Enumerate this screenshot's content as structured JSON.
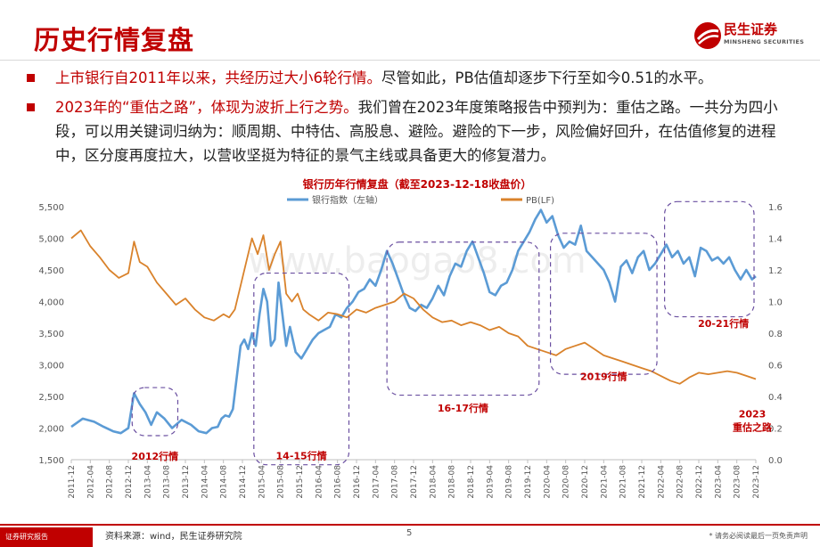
{
  "header": {
    "title": "历史行情复盘",
    "logo_cn": "民生证券",
    "logo_en": "MINSHENG SECURITIES"
  },
  "bullets": [
    {
      "red": "上市银行自2011年以来，共经历过大小6轮行情。",
      "normal": "尽管如此，PB估值却逐步下行至如今0.51的水平。"
    },
    {
      "red": "2023年的“重估之路”，体现为波折上行之势。",
      "normal": "我们曾在2023年度策略报告中预判为：重估之路。一共分为四小段，可以用关键词归纳为：顺周期、中特估、高股息、避险。避险的下一步，风险偏好回升，在估值修复的进程中，区分度再度拉大，以营收坚挺为特征的景气主线或具备更大的修复潜力。"
    }
  ],
  "chart_data": {
    "type": "line",
    "title": "银行历年行情复盘（截至2023-12-18收盘价）",
    "watermark": "www.baogao8.com",
    "colors": {
      "index": "#5b9bd5",
      "pb": "#d9822b",
      "box": "#6a4fa0",
      "annotation": "#c00000"
    },
    "legend": [
      "银行指数（左轴）",
      "PB(LF)"
    ],
    "y_left": {
      "min": 1500,
      "max": 5500,
      "ticks": [
        "1,500",
        "2,000",
        "2,500",
        "3,000",
        "3,500",
        "4,000",
        "4,500",
        "5,000",
        "5,500"
      ],
      "tick_values": [
        1500,
        2000,
        2500,
        3000,
        3500,
        4000,
        4500,
        5000,
        5500
      ]
    },
    "y_right": {
      "min": 0,
      "max": 1.6,
      "ticks": [
        "0.0",
        "0.2",
        "0.4",
        "0.6",
        "0.8",
        "1.0",
        "1.2",
        "1.4",
        "1.6"
      ],
      "tick_values": [
        0,
        0.2,
        0.4,
        0.6,
        0.8,
        1.0,
        1.2,
        1.4,
        1.6
      ]
    },
    "x_labels": [
      "2011-12",
      "2012-04",
      "2012-08",
      "2012-12",
      "2013-04",
      "2013-08",
      "2013-12",
      "2014-04",
      "2014-08",
      "2014-12",
      "2015-04",
      "2015-08",
      "2015-12",
      "2016-04",
      "2016-08",
      "2016-12",
      "2017-04",
      "2017-08",
      "2017-12",
      "2018-04",
      "2018-08",
      "2018-12",
      "2019-04",
      "2019-08",
      "2019-12",
      "2020-04",
      "2020-08",
      "2020-12",
      "2021-04",
      "2021-08",
      "2021-12",
      "2022-04",
      "2022-08",
      "2022-12",
      "2023-04",
      "2023-08",
      "2023-12"
    ],
    "series": [
      {
        "name": "银行指数（左轴）",
        "axis": "left",
        "x": [
          0,
          0.6,
          1.2,
          1.7,
          2.2,
          2.6,
          3.0,
          3.3,
          3.6,
          3.9,
          4.2,
          4.5,
          4.9,
          5.3,
          5.8,
          6.3,
          6.7,
          7.1,
          7.4,
          7.7,
          7.9,
          8.1,
          8.3,
          8.5,
          8.7,
          8.9,
          9.1,
          9.3,
          9.5,
          9.7,
          9.9,
          10.1,
          10.3,
          10.5,
          10.7,
          10.9,
          11.1,
          11.3,
          11.5,
          11.8,
          12.1,
          12.4,
          12.7,
          13.0,
          13.3,
          13.6,
          13.9,
          14.2,
          14.5,
          14.8,
          15.1,
          15.4,
          15.7,
          16.0,
          16.3,
          16.6,
          16.9,
          17.2,
          17.5,
          17.8,
          18.1,
          18.4,
          18.7,
          19.0,
          19.3,
          19.6,
          19.9,
          20.2,
          20.5,
          20.8,
          21.1,
          21.4,
          21.7,
          22.0,
          22.3,
          22.6,
          22.9,
          23.2,
          23.5,
          23.8,
          24.1,
          24.4,
          24.7,
          25.0,
          25.3,
          25.6,
          25.9,
          26.2,
          26.5,
          26.8,
          27.1,
          27.4,
          27.7,
          28.0,
          28.3,
          28.6,
          28.9,
          29.2,
          29.5,
          29.8,
          30.1,
          30.4,
          30.7,
          31.0,
          31.3,
          31.6,
          31.9,
          32.2,
          32.5,
          32.8,
          33.1,
          33.4,
          33.7,
          34.0,
          34.3,
          34.6,
          34.9,
          35.2,
          35.5,
          35.8,
          36.0
        ],
        "values": [
          2020,
          2150,
          2100,
          2020,
          1950,
          1920,
          2000,
          2550,
          2380,
          2250,
          2050,
          2250,
          2150,
          2000,
          2130,
          2050,
          1950,
          1920,
          2000,
          2020,
          2150,
          2200,
          2180,
          2300,
          2800,
          3300,
          3400,
          3250,
          3500,
          3300,
          3800,
          4200,
          4000,
          3300,
          3400,
          4300,
          3800,
          3300,
          3600,
          3200,
          3100,
          3250,
          3400,
          3500,
          3550,
          3600,
          3800,
          3750,
          3900,
          4000,
          4150,
          4200,
          4350,
          4250,
          4500,
          4800,
          4600,
          4350,
          4100,
          3900,
          3850,
          3950,
          3900,
          4050,
          4250,
          4100,
          4400,
          4600,
          4550,
          4800,
          4950,
          4700,
          4450,
          4150,
          4100,
          4250,
          4300,
          4500,
          4800,
          4950,
          5100,
          5300,
          5450,
          5250,
          5350,
          5050,
          4850,
          4950,
          4900,
          5200,
          4800,
          4700,
          4600,
          4500,
          4300,
          4000,
          4550,
          4650,
          4450,
          4700,
          4800,
          4500,
          4600,
          4750,
          4900,
          4700,
          4800,
          4600,
          4700,
          4400,
          4850,
          4800,
          4650,
          4700,
          4600,
          4700,
          4500,
          4350,
          4500,
          4350,
          4400
        ]
      },
      {
        "name": "PB(LF)",
        "axis": "right",
        "x": [
          0,
          0.5,
          1.0,
          1.5,
          2.0,
          2.5,
          3.0,
          3.3,
          3.6,
          4.0,
          4.5,
          5.0,
          5.5,
          6.0,
          6.5,
          7.0,
          7.5,
          8.0,
          8.3,
          8.6,
          8.9,
          9.2,
          9.5,
          9.8,
          10.1,
          10.4,
          10.7,
          11.0,
          11.3,
          11.6,
          11.9,
          12.2,
          12.5,
          13.0,
          13.5,
          14.0,
          14.5,
          15.0,
          15.5,
          16.0,
          16.5,
          17.0,
          17.5,
          18.0,
          18.5,
          19.0,
          19.5,
          20.0,
          20.5,
          21.0,
          21.5,
          22.0,
          22.5,
          23.0,
          23.5,
          24.0,
          24.5,
          25.0,
          25.5,
          26.0,
          26.5,
          27.0,
          27.5,
          28.0,
          28.5,
          29.0,
          29.5,
          30.0,
          30.5,
          31.0,
          31.5,
          32.0,
          32.5,
          33.0,
          33.5,
          34.0,
          34.5,
          35.0,
          35.5,
          36.0
        ],
        "values": [
          1.4,
          1.45,
          1.35,
          1.28,
          1.2,
          1.15,
          1.18,
          1.38,
          1.25,
          1.22,
          1.12,
          1.05,
          0.98,
          1.02,
          0.95,
          0.9,
          0.88,
          0.92,
          0.9,
          0.95,
          1.1,
          1.25,
          1.4,
          1.3,
          1.42,
          1.2,
          1.3,
          1.38,
          1.05,
          1.0,
          1.05,
          0.95,
          0.92,
          0.88,
          0.93,
          0.92,
          0.9,
          0.95,
          0.93,
          0.96,
          0.98,
          1.0,
          1.05,
          1.02,
          0.95,
          0.9,
          0.87,
          0.88,
          0.85,
          0.87,
          0.85,
          0.82,
          0.84,
          0.8,
          0.78,
          0.72,
          0.7,
          0.68,
          0.66,
          0.7,
          0.72,
          0.74,
          0.7,
          0.66,
          0.64,
          0.62,
          0.6,
          0.58,
          0.56,
          0.53,
          0.5,
          0.48,
          0.52,
          0.55,
          0.54,
          0.55,
          0.56,
          0.55,
          0.53,
          0.51
        ]
      }
    ],
    "boxes": [
      {
        "label": "2012行情",
        "x0": 3.2,
        "x1": 5.6,
        "y0": 1880,
        "y1": 2640
      },
      {
        "label": "14-15行情",
        "x0": 9.6,
        "x1": 14.6,
        "y0": 1420,
        "y1": 4450
      },
      {
        "label": "16-17行情",
        "x0": 16.6,
        "x1": 24.6,
        "y0": 2520,
        "y1": 4940
      },
      {
        "label": "2019行情",
        "x0": 25.2,
        "x1": 30.8,
        "y0": 2850,
        "y1": 5080
      },
      {
        "label": "20-21行情",
        "x0": 31.2,
        "x1": 37.4,
        "y0": 3760,
        "y1": 5580
      },
      {
        "label": "",
        "x0": 38.2,
        "x1": 40.2,
        "y0": 3750,
        "y1": 4970
      }
    ],
    "annotations": [
      {
        "text": "2012行情",
        "x": 4.4,
        "y": 1500
      },
      {
        "text": "14-15行情",
        "x": 12.1,
        "y": 1510
      },
      {
        "text": "16-17行情",
        "x": 20.6,
        "y": 2260
      },
      {
        "text": "2019行情",
        "x": 28.0,
        "y": 2760
      },
      {
        "text": "20-21行情",
        "x": 34.3,
        "y": 3600
      },
      {
        "text": "2023",
        "x": 38.7,
        "y": 2170
      },
      {
        "text": "重估之路",
        "x": 38.7,
        "y": 1960
      }
    ]
  },
  "footer": {
    "tag": "证券研究报告",
    "source": "资料来源：wind，民生证券研究院",
    "page": "5",
    "disclaimer": "* 请务必阅读最后一页免责声明"
  }
}
